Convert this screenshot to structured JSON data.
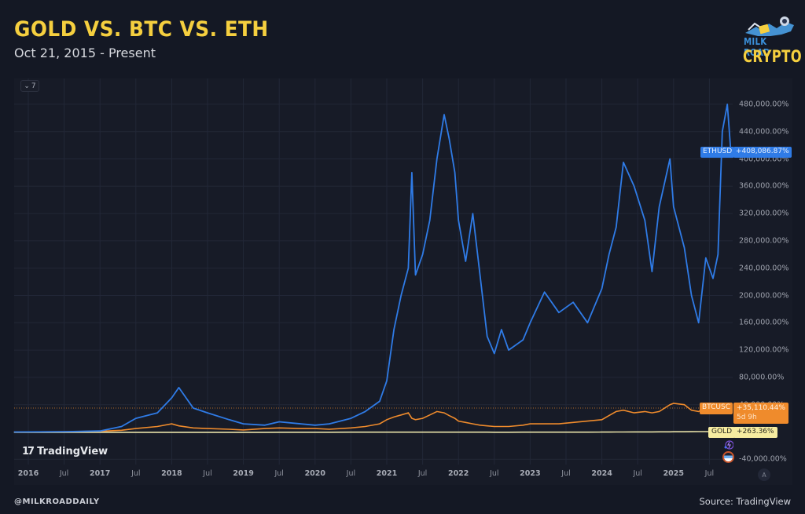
{
  "header": {
    "title": "GOLD VS. BTC VS. ETH",
    "subtitle": "Oct 21, 2015 - Present"
  },
  "logo": {
    "line1": "MILK ROAD",
    "line2": "CRYPTO"
  },
  "chart_controls": {
    "legend_toggle_icon": "chevron-down-icon",
    "legend_toggle_count": "7",
    "auto_scale_label": "A"
  },
  "watermark": {
    "mark": "17",
    "name": "TradingView"
  },
  "footer": {
    "handle": "@MILKROADDAILY",
    "source": "Source: TradingView"
  },
  "colors": {
    "background": "#141824",
    "panel": "#171b27",
    "title": "#f5cf3f",
    "eth": "#2f7be6",
    "btc": "#ef8b2c",
    "gold": "#e8e2a8",
    "grid": "#222737"
  },
  "price_tags": {
    "eth": {
      "symbol": "ETHUSD",
      "value": "+408,086.87%"
    },
    "btc": {
      "symbol": "BTCUSC",
      "value": "+35,110.44%",
      "countdown": "5d 9h"
    },
    "gold": {
      "symbol": "GOLD",
      "value": "+263.36%"
    }
  },
  "chart_data": {
    "type": "line",
    "title": "GOLD VS. BTC VS. ETH",
    "subtitle": "Oct 21, 2015 - Present",
    "xlabel": "",
    "ylabel": "Percent change",
    "y_axis_position": "right",
    "ylim": [
      -40000,
      480000
    ],
    "grid": true,
    "legend_position": "right price tags",
    "y_ticks": [
      "480,000.00%",
      "440,000.00%",
      "400,000.00%",
      "360,000.00%",
      "320,000.00%",
      "280,000.00%",
      "240,000.00%",
      "200,000.00%",
      "160,000.00%",
      "120,000.00%",
      "80,000.00%",
      "40,000.00%",
      "-40,000.00%"
    ],
    "x_ticks": [
      "2016",
      "Jul",
      "2017",
      "Jul",
      "2018",
      "Jul",
      "2019",
      "Jul",
      "2020",
      "Jul",
      "2021",
      "Jul",
      "2022",
      "Jul",
      "2023",
      "Jul",
      "2024",
      "Jul",
      "2025",
      "Jul"
    ],
    "x": [
      2015.8,
      2016.5,
      2017.0,
      2017.3,
      2017.5,
      2017.8,
      2018.0,
      2018.1,
      2018.3,
      2018.5,
      2018.8,
      2019.0,
      2019.3,
      2019.5,
      2019.8,
      2020.0,
      2020.2,
      2020.5,
      2020.7,
      2020.9,
      2021.0,
      2021.1,
      2021.2,
      2021.3,
      2021.35,
      2021.4,
      2021.5,
      2021.6,
      2021.7,
      2021.8,
      2021.87,
      2021.95,
      2022.0,
      2022.1,
      2022.2,
      2022.3,
      2022.4,
      2022.5,
      2022.6,
      2022.7,
      2022.9,
      2023.0,
      2023.2,
      2023.4,
      2023.6,
      2023.8,
      2024.0,
      2024.1,
      2024.2,
      2024.3,
      2024.45,
      2024.6,
      2024.7,
      2024.8,
      2024.95,
      2025.0,
      2025.15,
      2025.25,
      2025.35,
      2025.45,
      2025.55,
      2025.62,
      2025.68,
      2025.75,
      2025.8
    ],
    "series": [
      {
        "name": "ETHUSD",
        "color": "#2f7be6",
        "last_value": 408086.87,
        "values": [
          0,
          500,
          1500,
          8000,
          20000,
          28000,
          50000,
          65000,
          35000,
          28000,
          18000,
          12000,
          10000,
          15000,
          12000,
          10000,
          12000,
          20000,
          30000,
          45000,
          75000,
          150000,
          200000,
          240000,
          380000,
          230000,
          260000,
          310000,
          400000,
          465000,
          430000,
          380000,
          310000,
          250000,
          320000,
          230000,
          140000,
          115000,
          150000,
          120000,
          135000,
          160000,
          205000,
          175000,
          190000,
          160000,
          210000,
          260000,
          300000,
          395000,
          360000,
          310000,
          235000,
          330000,
          400000,
          330000,
          270000,
          200000,
          160000,
          255000,
          225000,
          260000,
          440000,
          480000,
          408087
        ]
      },
      {
        "name": "BTCUSC",
        "color": "#ef8b2c",
        "last_value": 35110.44,
        "values": [
          0,
          500,
          1000,
          2500,
          5000,
          8000,
          12000,
          9000,
          6000,
          5000,
          4000,
          3000,
          5000,
          6000,
          5000,
          5000,
          4000,
          6000,
          8000,
          12000,
          18000,
          22000,
          25000,
          28000,
          20000,
          18000,
          20000,
          25000,
          30000,
          28000,
          24000,
          20000,
          16000,
          14000,
          12000,
          10000,
          9000,
          8000,
          8000,
          8000,
          10000,
          12000,
          12000,
          12000,
          14000,
          16000,
          18000,
          24000,
          30000,
          32000,
          28000,
          30000,
          28000,
          30000,
          40000,
          42000,
          40000,
          32000,
          30000,
          36000,
          40000,
          38000,
          42000,
          40000,
          35110
        ]
      },
      {
        "name": "GOLD",
        "color": "#e8e2a8",
        "last_value": 263.36,
        "values": [
          0,
          20,
          15,
          20,
          25,
          20,
          30,
          25,
          20,
          15,
          15,
          25,
          30,
          40,
          45,
          50,
          60,
          80,
          85,
          80,
          75,
          70,
          72,
          75,
          74,
          72,
          70,
          65,
          70,
          72,
          72,
          72,
          75,
          80,
          78,
          70,
          65,
          60,
          58,
          60,
          65,
          75,
          80,
          80,
          78,
          85,
          95,
          110,
          130,
          135,
          145,
          155,
          160,
          175,
          180,
          190,
          210,
          230,
          240,
          245,
          250,
          250,
          255,
          260,
          263
        ]
      }
    ]
  }
}
